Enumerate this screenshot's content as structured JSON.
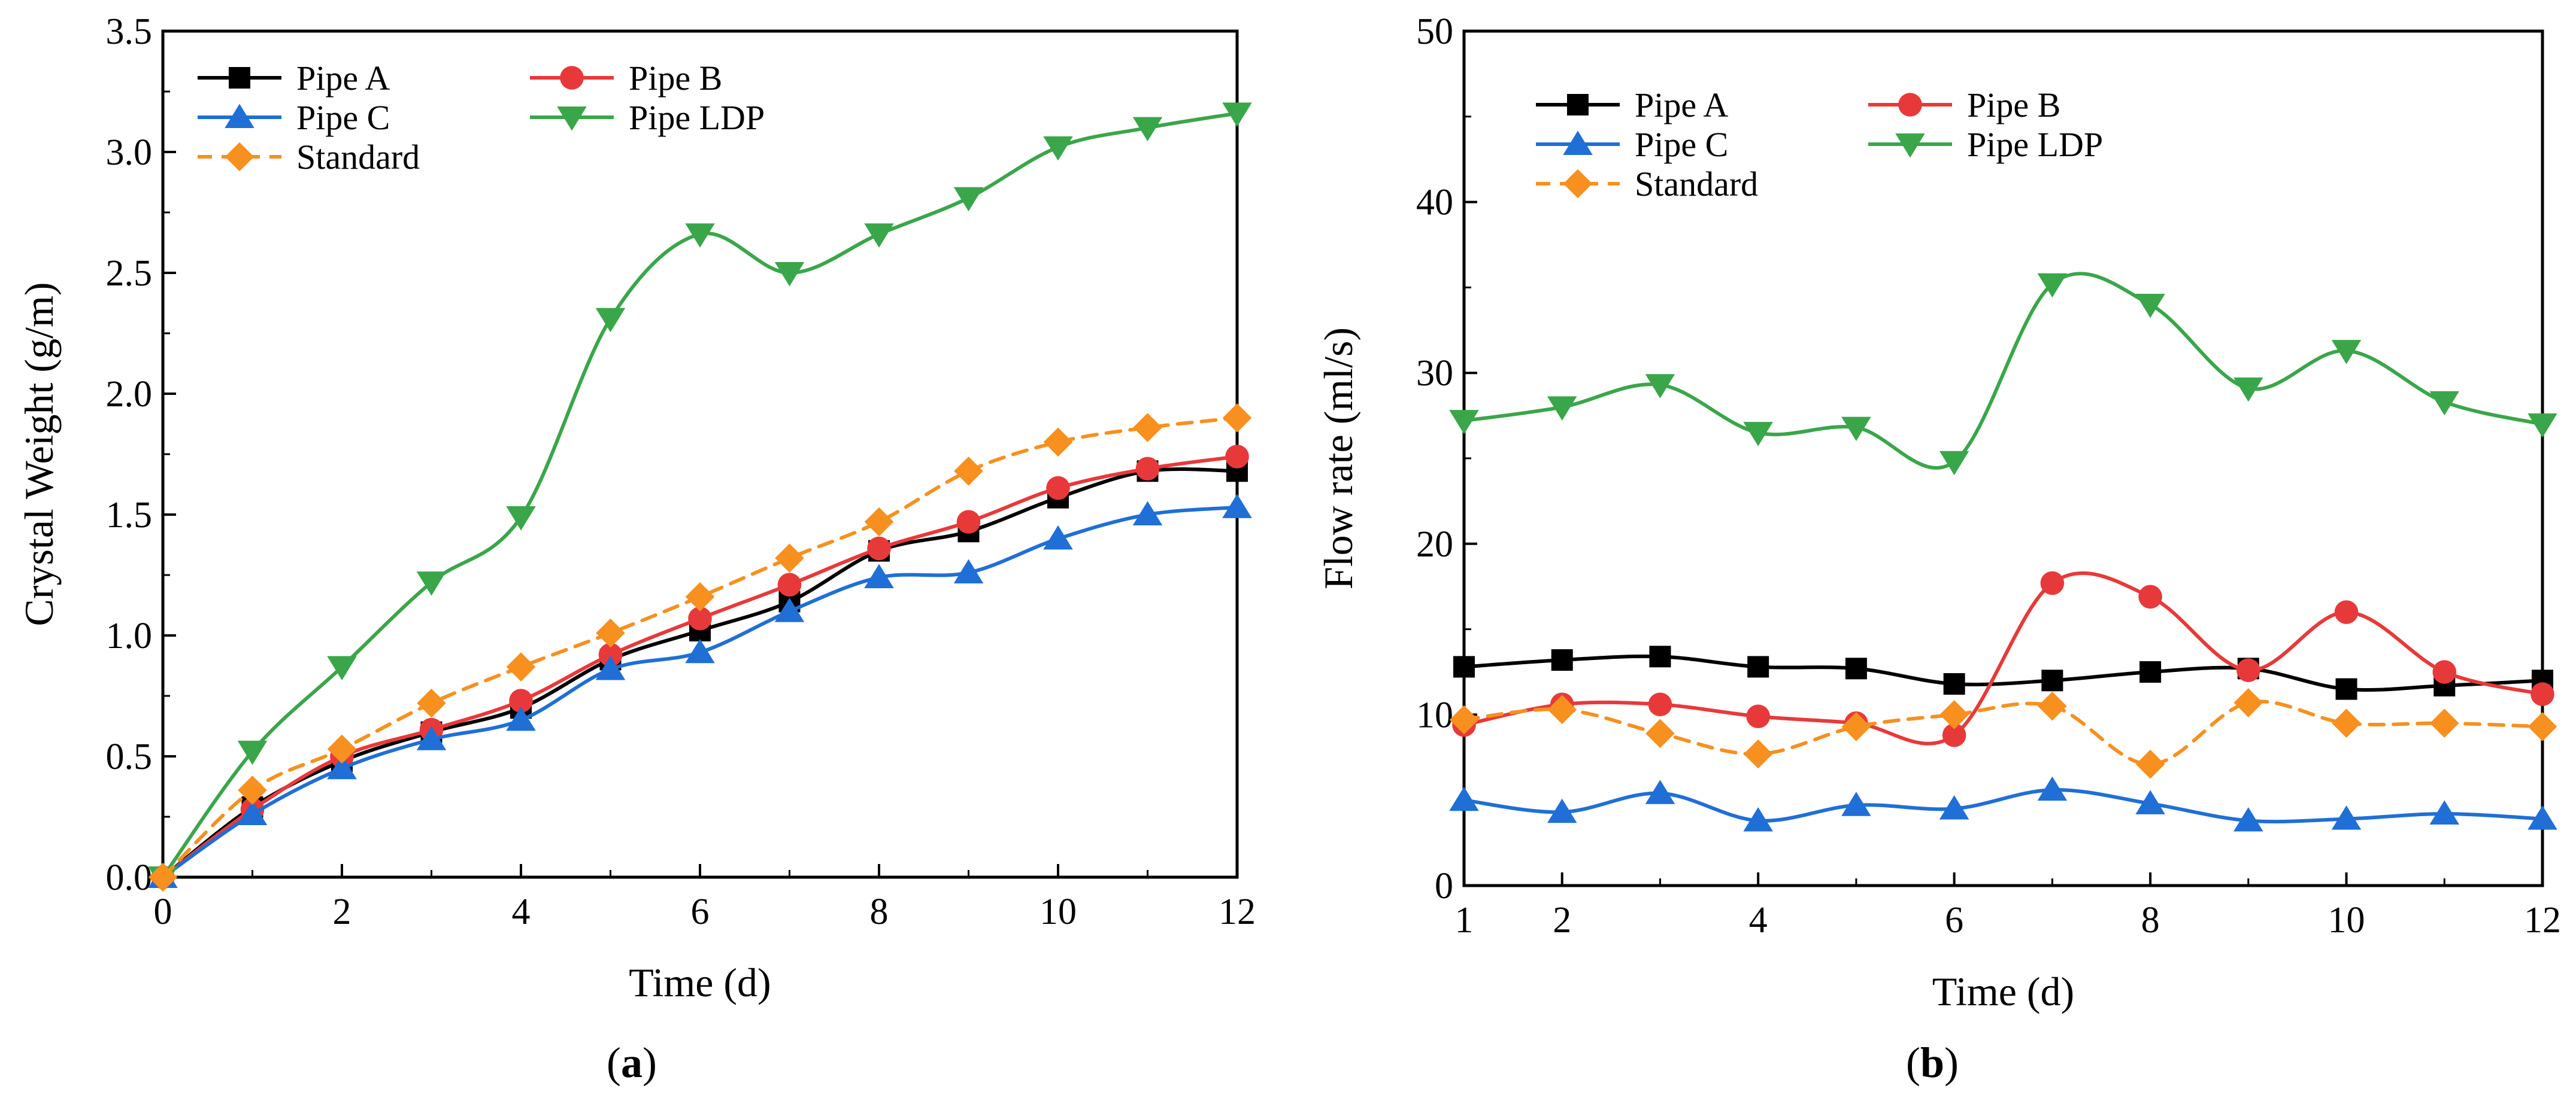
{
  "colors": {
    "pipe_a": "#000000",
    "pipe_b": "#e8393a",
    "pipe_c": "#1f6fd6",
    "pipe_ldp": "#3aa64a",
    "standard": "#f7901e"
  },
  "chart_data": [
    {
      "type": "line",
      "panel_label_open": "(",
      "panel_label_letter": "a",
      "panel_label_close": ")",
      "xlabel": "Time (d)",
      "ylabel": "Crystal Weight (g/m)",
      "xlim": [
        0,
        12
      ],
      "ylim": [
        0,
        3.5
      ],
      "xticks": [
        0,
        2,
        4,
        6,
        8,
        10,
        12
      ],
      "yticks": [
        0.0,
        0.5,
        1.0,
        1.5,
        2.0,
        2.5,
        3.0,
        3.5
      ],
      "ytick_labels": [
        "0.0",
        "0.5",
        "1.0",
        "1.5",
        "2.0",
        "2.5",
        "3.0",
        "3.5"
      ],
      "legend_position": "top-left",
      "x": [
        0,
        1,
        2,
        3,
        4,
        5,
        6,
        7,
        8,
        9,
        10,
        11,
        12
      ],
      "series": [
        {
          "name": "Pipe A",
          "key": "pipe_a",
          "color": "#000000",
          "marker": "square",
          "dashed": false,
          "values": [
            0.0,
            0.29,
            0.48,
            0.6,
            0.7,
            0.9,
            1.02,
            1.14,
            1.35,
            1.43,
            1.57,
            1.68,
            1.68
          ]
        },
        {
          "name": "Pipe B",
          "key": "pipe_b",
          "color": "#e8393a",
          "marker": "circle",
          "dashed": false,
          "values": [
            0.0,
            0.28,
            0.5,
            0.61,
            0.73,
            0.92,
            1.07,
            1.21,
            1.36,
            1.47,
            1.61,
            1.69,
            1.74
          ]
        },
        {
          "name": "Pipe C",
          "key": "pipe_c",
          "color": "#1f6fd6",
          "marker": "triangle-up",
          "dashed": false,
          "values": [
            0.0,
            0.26,
            0.45,
            0.57,
            0.65,
            0.86,
            0.93,
            1.1,
            1.24,
            1.26,
            1.4,
            1.5,
            1.53
          ]
        },
        {
          "name": "Pipe LDP",
          "key": "pipe_ldp",
          "color": "#3aa64a",
          "marker": "triangle-down",
          "dashed": false,
          "values": [
            0.0,
            0.52,
            0.87,
            1.22,
            1.49,
            2.31,
            2.66,
            2.5,
            2.66,
            2.81,
            3.02,
            3.1,
            3.16
          ]
        },
        {
          "name": "Standard",
          "key": "standard",
          "color": "#f7901e",
          "marker": "diamond",
          "dashed": true,
          "values": [
            0.0,
            0.36,
            0.53,
            0.72,
            0.87,
            1.01,
            1.16,
            1.32,
            1.47,
            1.68,
            1.8,
            1.86,
            1.9
          ]
        }
      ]
    },
    {
      "type": "line",
      "panel_label_open": "(",
      "panel_label_letter": "b",
      "panel_label_close": ")",
      "xlabel": "Time (d)",
      "ylabel": "Flow rate (ml/s)",
      "xlim": [
        1,
        12
      ],
      "ylim": [
        0,
        50
      ],
      "xticks": [
        1,
        2,
        4,
        6,
        8,
        10,
        12
      ],
      "yticks": [
        0,
        10,
        20,
        30,
        40,
        50
      ],
      "ytick_labels": [
        "0",
        "10",
        "20",
        "30",
        "40",
        "50"
      ],
      "legend_position": "top-left",
      "x": [
        1,
        2,
        3,
        4,
        5,
        6,
        7,
        8,
        9,
        10,
        11,
        12
      ],
      "series": [
        {
          "name": "Pipe A",
          "key": "pipe_a",
          "color": "#000000",
          "marker": "square",
          "dashed": false,
          "values": [
            12.8,
            13.2,
            13.4,
            12.8,
            12.7,
            11.8,
            12.0,
            12.5,
            12.7,
            11.5,
            11.7,
            12.0
          ]
        },
        {
          "name": "Pipe B",
          "key": "pipe_b",
          "color": "#e8393a",
          "marker": "circle",
          "dashed": false,
          "values": [
            9.4,
            10.6,
            10.6,
            9.9,
            9.5,
            8.8,
            17.7,
            16.9,
            12.6,
            16.0,
            12.5,
            11.2
          ]
        },
        {
          "name": "Pipe C",
          "key": "pipe_c",
          "color": "#1f6fd6",
          "marker": "triangle-up",
          "dashed": false,
          "values": [
            5.0,
            4.3,
            5.4,
            3.8,
            4.7,
            4.5,
            5.6,
            4.8,
            3.8,
            3.9,
            4.2,
            3.9
          ]
        },
        {
          "name": "Pipe LDP",
          "key": "pipe_ldp",
          "color": "#3aa64a",
          "marker": "triangle-down",
          "dashed": false,
          "values": [
            27.2,
            28.0,
            29.3,
            26.5,
            26.8,
            24.8,
            35.2,
            34.0,
            29.1,
            31.3,
            28.3,
            27.0
          ]
        },
        {
          "name": "Standard",
          "key": "standard",
          "color": "#f7901e",
          "marker": "diamond",
          "dashed": true,
          "values": [
            9.7,
            10.3,
            8.9,
            7.7,
            9.3,
            10.0,
            10.5,
            7.1,
            10.7,
            9.5,
            9.5,
            9.3
          ]
        }
      ]
    }
  ]
}
